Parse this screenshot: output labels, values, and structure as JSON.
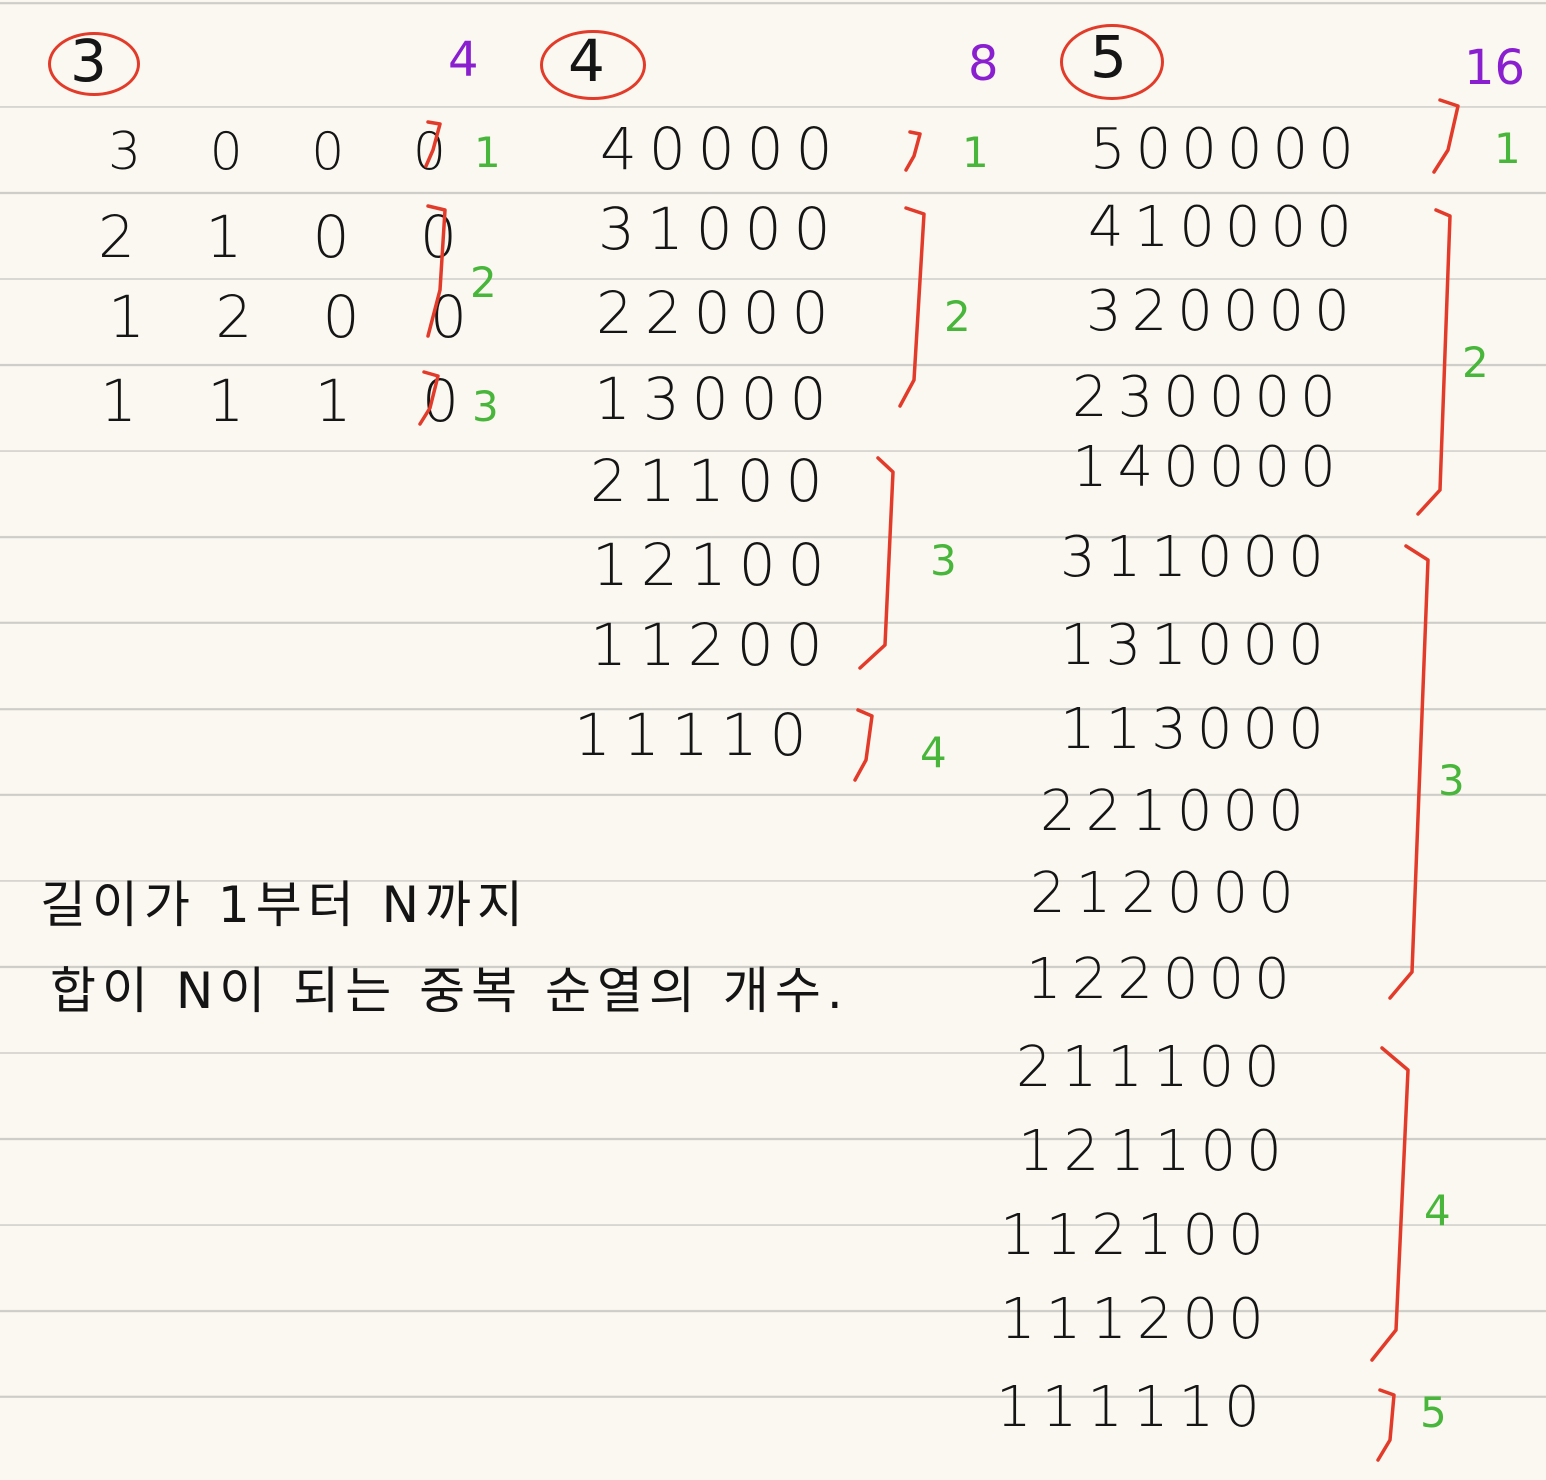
{
  "sections": [
    {
      "n": "3",
      "total": "4",
      "rows": [
        "3 0 0 0",
        "2 1 0 0",
        "1 2 0 0",
        "1 1 1 0"
      ],
      "groups": [
        {
          "count": "1"
        },
        {
          "count": "2"
        },
        {
          "count": "3"
        }
      ]
    },
    {
      "n": "4",
      "total": "8",
      "rows": [
        "40000",
        "31000",
        "22000",
        "13000",
        "21100",
        "12100",
        "11200",
        "11110"
      ],
      "groups": [
        {
          "count": "1"
        },
        {
          "count": "2"
        },
        {
          "count": "3"
        },
        {
          "count": "4"
        }
      ]
    },
    {
      "n": "5",
      "total": "16",
      "rows": [
        "500000",
        "410000",
        "320000",
        "230000",
        "140000",
        "311000",
        "131000",
        "113000",
        "221000",
        "212000",
        "122000",
        "211100",
        "121100",
        "112100",
        "111200",
        "111110"
      ],
      "groups": [
        {
          "count": "1"
        },
        {
          "count": "2"
        },
        {
          "count": "3"
        },
        {
          "count": "4"
        },
        {
          "count": "5"
        }
      ]
    }
  ],
  "description": {
    "line1": "길이가  1부터 N까지",
    "line2": "합이 N이 되는 중복 순열의 개수."
  }
}
